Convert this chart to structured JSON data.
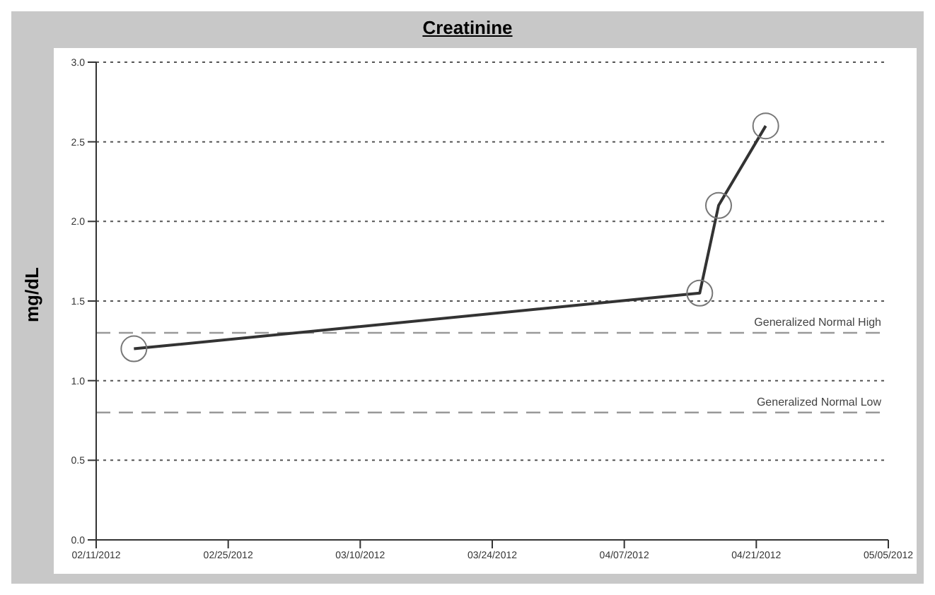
{
  "chart_data": {
    "type": "line",
    "title": "Creatinine",
    "ylabel": "mg/dL",
    "x": [
      "2012-02-15",
      "2012-04-15",
      "2012-04-17",
      "2012-04-22"
    ],
    "series": [
      {
        "color": "#333333",
        "values": [
          1.2,
          1.55,
          2.1,
          2.6
        ]
      }
    ],
    "xlim": [
      "2012-02-11",
      "2012-05-05"
    ],
    "xticks": [
      {
        "value": "2012-02-11",
        "label": "02/11/2012"
      },
      {
        "value": "2012-02-25",
        "label": "02/25/2012"
      },
      {
        "value": "2012-03-10",
        "label": "03/10/2012"
      },
      {
        "value": "2012-03-24",
        "label": "03/24/2012"
      },
      {
        "value": "2012-04-07",
        "label": "04/07/2012"
      },
      {
        "value": "2012-04-21",
        "label": "04/21/2012"
      },
      {
        "value": "2012-05-05",
        "label": "05/05/2012"
      }
    ],
    "ylim": [
      0,
      3
    ],
    "yticks": [
      {
        "value": 0,
        "label": "0.0"
      },
      {
        "value": 0.5,
        "label": "0.5"
      },
      {
        "value": 1,
        "label": "1.0"
      },
      {
        "value": 1.5,
        "label": "1.5"
      },
      {
        "value": 2,
        "label": "2.0"
      },
      {
        "value": 2.5,
        "label": "2.5"
      },
      {
        "value": 3,
        "label": "3.0"
      }
    ],
    "ref_lines": [
      {
        "axis": "y",
        "value": 1.3,
        "label": "Generalized Normal High",
        "color": "#999999",
        "line_style": "dashed"
      },
      {
        "axis": "y",
        "value": 0.8,
        "label": "Generalized Normal Low",
        "color": "#999999",
        "line_style": "dashed"
      }
    ],
    "grid": "y",
    "marker": "circle",
    "line_style": "solid"
  }
}
